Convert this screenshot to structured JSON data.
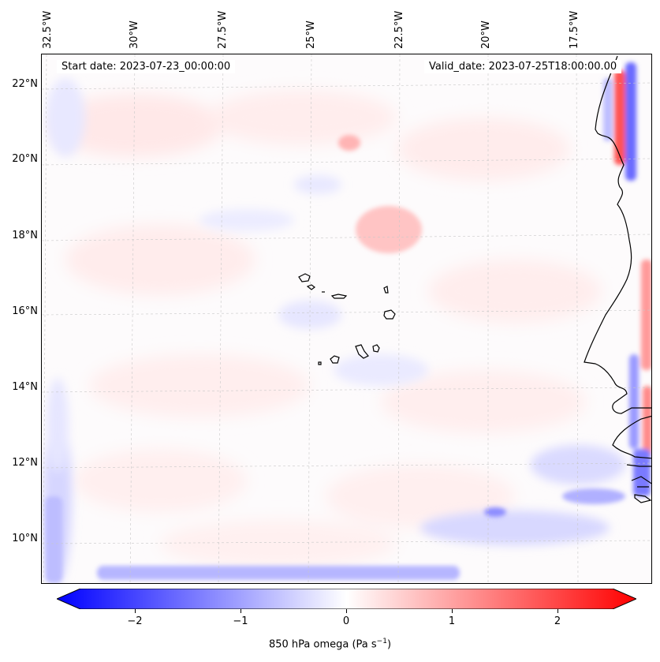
{
  "map": {
    "start_date": "Start date: 2023-07-23_00:00:00",
    "valid_date": "Valid_date: 2023-07-25T18:00:00.00",
    "lon_labels": [
      "32.5°W",
      "30°W",
      "27.5°W",
      "25°W",
      "22.5°W",
      "20°W",
      "17.5°W"
    ],
    "lat_labels": [
      "22°N",
      "20°N",
      "18°N",
      "16°N",
      "14°N",
      "12°N",
      "10°N"
    ],
    "extent": {
      "lon_min": -33.0,
      "lon_max": -15.5,
      "lat_min": 8.8,
      "lat_max": 22.8
    },
    "field": "850 hPa omega",
    "colormap": "bwr",
    "colors": {
      "negative": "#0000ff",
      "zero": "#ffffff",
      "positive": "#ff0000",
      "coast": "#000000",
      "grid": "#c8c8c8"
    }
  },
  "colorbar": {
    "title": "850 hPa omega (Pa s",
    "title_exp": "−1",
    "title_end": ")",
    "range": [
      -2.7,
      2.7
    ],
    "ticks": [
      "−2",
      "−1",
      "0",
      "1",
      "2"
    ],
    "tick_values": [
      -2,
      -1,
      0,
      1,
      2
    ],
    "extend": "both"
  }
}
